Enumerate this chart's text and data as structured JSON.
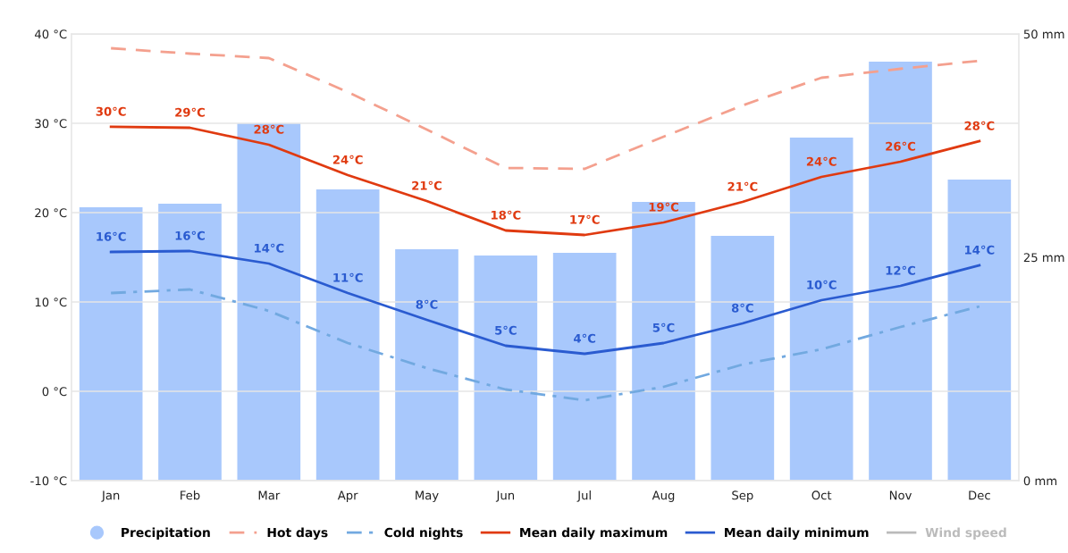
{
  "chart_data": {
    "type": "line",
    "categories": [
      "Jan",
      "Feb",
      "Mar",
      "Apr",
      "May",
      "Jun",
      "Jul",
      "Aug",
      "Sep",
      "Oct",
      "Nov",
      "Dec"
    ],
    "ylim": [
      -10,
      40
    ],
    "yticks": [
      {
        "value": -10,
        "label": "-10 °C"
      },
      {
        "value": 0,
        "label": "0 °C"
      },
      {
        "value": 10,
        "label": "10 °C"
      },
      {
        "value": 20,
        "label": "20 °C"
      },
      {
        "value": 30,
        "label": "30 °C"
      },
      {
        "value": 40,
        "label": "40 °C"
      }
    ],
    "y2lim": [
      0,
      50
    ],
    "y2ticks": [
      {
        "value": 0,
        "label": "0 mm"
      },
      {
        "value": 25,
        "label": "25 mm"
      },
      {
        "value": 50,
        "label": "50 mm"
      }
    ],
    "grid": "y",
    "legend": "bottom",
    "series": [
      {
        "name": "Precipitation",
        "type": "bar",
        "axis": "y2",
        "color": "#a8c8fc",
        "values": [
          30.6,
          31.0,
          40.0,
          32.6,
          25.9,
          25.2,
          25.5,
          31.2,
          27.4,
          38.4,
          46.9,
          33.7
        ]
      },
      {
        "name": "Hot days",
        "line_style": "dashed",
        "color": "#f4a08e",
        "values": [
          38.4,
          37.8,
          37.3,
          33.5,
          29.3,
          25.0,
          24.9,
          28.5,
          32.0,
          35.1,
          36.1,
          37.0
        ]
      },
      {
        "name": "Cold nights",
        "line_style": "dashdot",
        "color": "#72a9e0",
        "values": [
          11.0,
          11.4,
          9.0,
          5.4,
          2.6,
          0.2,
          -1.0,
          0.5,
          3.0,
          4.7,
          7.2,
          9.5
        ]
      },
      {
        "name": "Mean daily maximum",
        "line_style": "solid",
        "color": "#e03a10",
        "values": [
          29.6,
          29.5,
          27.6,
          24.2,
          21.3,
          18.0,
          17.5,
          18.9,
          21.2,
          24.0,
          25.7,
          28.0
        ],
        "value_labels": [
          "30°C",
          "29°C",
          "28°C",
          "24°C",
          "21°C",
          "18°C",
          "17°C",
          "19°C",
          "21°C",
          "24°C",
          "26°C",
          "28°C"
        ]
      },
      {
        "name": "Mean daily minimum",
        "line_style": "solid",
        "color": "#2a5bd0",
        "values": [
          15.6,
          15.7,
          14.3,
          11.0,
          8.0,
          5.1,
          4.2,
          5.4,
          7.6,
          10.2,
          11.8,
          14.1
        ],
        "value_labels": [
          "16°C",
          "16°C",
          "14°C",
          "11°C",
          "8°C",
          "5°C",
          "4°C",
          "5°C",
          "8°C",
          "10°C",
          "12°C",
          "14°C"
        ]
      },
      {
        "name": "Wind speed",
        "line_style": "solid",
        "color": "#bbbbbb",
        "values": [
          null,
          null,
          null,
          null,
          null,
          null,
          null,
          null,
          null,
          null,
          null,
          null
        ]
      }
    ]
  }
}
